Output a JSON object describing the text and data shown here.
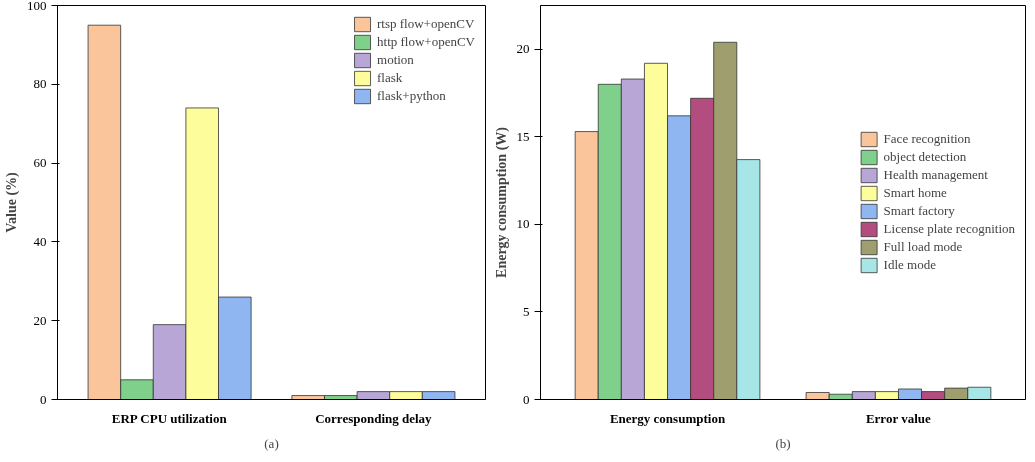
{
  "chart_data": [
    {
      "type": "bar",
      "ylabel": "Value (%)",
      "categories": [
        "ERP CPU utilization",
        "Corresponding delay"
      ],
      "ylim": [
        0,
        100
      ],
      "yticks": [
        0,
        20,
        40,
        60,
        80,
        100
      ],
      "grid": false,
      "legend": "top right",
      "annotations": [
        "(a)"
      ],
      "series": [
        {
          "name": "rtsp flow+openCV",
          "color": "#fbc59b",
          "values": [
            95,
            1
          ]
        },
        {
          "name": "http flow+openCV",
          "color": "#7fd08a",
          "values": [
            5,
            1
          ]
        },
        {
          "name": "motion",
          "color": "#b7a6d6",
          "values": [
            19,
            2
          ]
        },
        {
          "name": "flask",
          "color": "#fdfd9b",
          "values": [
            74,
            2
          ]
        },
        {
          "name": "flask+python",
          "color": "#8fb6f0",
          "values": [
            26,
            2
          ]
        }
      ]
    },
    {
      "type": "bar",
      "ylabel": "Energy consumption (W)",
      "categories": [
        "Energy consumption",
        "Error value"
      ],
      "ylim": [
        0,
        22.5
      ],
      "yticks": [
        0,
        5,
        10,
        15,
        20
      ],
      "grid": false,
      "legend": "right",
      "annotations": [
        "(b)"
      ],
      "series": [
        {
          "name": "Face recognition",
          "color": "#fbc59b",
          "values": [
            15.3,
            0.4
          ]
        },
        {
          "name": "object detection",
          "color": "#7fd08a",
          "values": [
            18.0,
            0.3
          ]
        },
        {
          "name": "Health management",
          "color": "#b7a6d6",
          "values": [
            18.3,
            0.45
          ]
        },
        {
          "name": "Smart home",
          "color": "#fdfd9b",
          "values": [
            19.2,
            0.45
          ]
        },
        {
          "name": "Smart factory",
          "color": "#8fb6f0",
          "values": [
            16.2,
            0.6
          ]
        },
        {
          "name": "License plate recognition",
          "color": "#b34d80",
          "values": [
            17.2,
            0.45
          ]
        },
        {
          "name": "Full load mode",
          "color": "#9e9e6e",
          "values": [
            20.4,
            0.65
          ]
        },
        {
          "name": "Idle mode",
          "color": "#a6e6e6",
          "values": [
            13.7,
            0.7
          ]
        }
      ]
    }
  ]
}
